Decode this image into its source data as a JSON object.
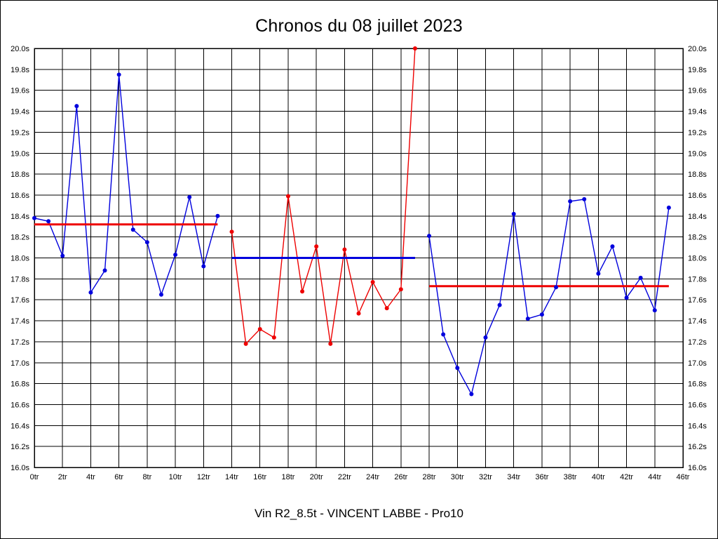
{
  "chart_data": {
    "type": "line",
    "title": "Chronos du 08 juillet 2023",
    "caption": "Vin R2_8.5t - VINCENT LABBE - Pro10",
    "xlabel": "",
    "ylabel": "",
    "xlim": [
      0,
      46
    ],
    "ylim": [
      16.0,
      20.0
    ],
    "grid": true,
    "x_tick_laps": [
      0,
      2,
      4,
      6,
      8,
      10,
      12,
      14,
      16,
      18,
      20,
      22,
      24,
      26,
      28,
      30,
      32,
      34,
      36,
      38,
      40,
      42,
      44,
      46
    ],
    "x_tick_labels": [
      "0tr",
      "2tr",
      "4tr",
      "6tr",
      "8tr",
      "10tr",
      "12tr",
      "14tr",
      "16tr",
      "18tr",
      "20tr",
      "22tr",
      "24tr",
      "26tr",
      "28tr",
      "30tr",
      "32tr",
      "34tr",
      "36tr",
      "38tr",
      "40tr",
      "42tr",
      "44tr",
      "46tr"
    ],
    "y_tick_values": [
      16.0,
      16.2,
      16.4,
      16.6,
      16.8,
      17.0,
      17.2,
      17.4,
      17.6,
      17.8,
      18.0,
      18.2,
      18.4,
      18.6,
      18.8,
      19.0,
      19.2,
      19.4,
      19.6,
      19.8,
      20.0
    ],
    "y_tick_labels": [
      "16.0s",
      "16.2s",
      "16.4s",
      "16.6s",
      "16.8s",
      "17.0s",
      "17.2s",
      "17.4s",
      "17.6s",
      "17.8s",
      "18.0s",
      "18.2s",
      "18.4s",
      "18.6s",
      "18.8s",
      "19.0s",
      "19.2s",
      "19.4s",
      "19.6s",
      "19.8s",
      "20.0s"
    ],
    "colors": {
      "blue": "#0000dd",
      "red": "#ee0000",
      "grid": "#000000"
    },
    "series": [
      {
        "name": "run1-laps",
        "color": "#0000dd",
        "start_lap": 0,
        "values": [
          18.38,
          18.35,
          18.02,
          19.45,
          17.67,
          17.88,
          19.75,
          18.27,
          18.15,
          17.65,
          18.03,
          18.58,
          17.92,
          18.4
        ]
      },
      {
        "name": "run2-laps",
        "color": "#ee0000",
        "start_lap": 14,
        "values": [
          18.25,
          17.18,
          17.32,
          17.24,
          18.59,
          17.68,
          18.11,
          17.18,
          18.08,
          17.47,
          17.77,
          17.52,
          17.7,
          20.0
        ]
      },
      {
        "name": "run3-laps",
        "color": "#0000dd",
        "start_lap": 28,
        "values": [
          18.21,
          17.27,
          16.95,
          16.7,
          17.24,
          17.55,
          18.42,
          17.42,
          17.46,
          17.72,
          18.54,
          18.56,
          17.85,
          18.11,
          17.62,
          17.81,
          17.5,
          18.48
        ]
      }
    ],
    "average_lines": [
      {
        "name": "run1-average-line",
        "color": "#ee0000",
        "value": 18.32,
        "from_lap": 0,
        "to_lap": 13
      },
      {
        "name": "run2-average-line",
        "color": "#0000dd",
        "value": 18.0,
        "from_lap": 14,
        "to_lap": 27
      },
      {
        "name": "run3-average-line",
        "color": "#ee0000",
        "value": 17.73,
        "from_lap": 28,
        "to_lap": 45
      }
    ]
  }
}
